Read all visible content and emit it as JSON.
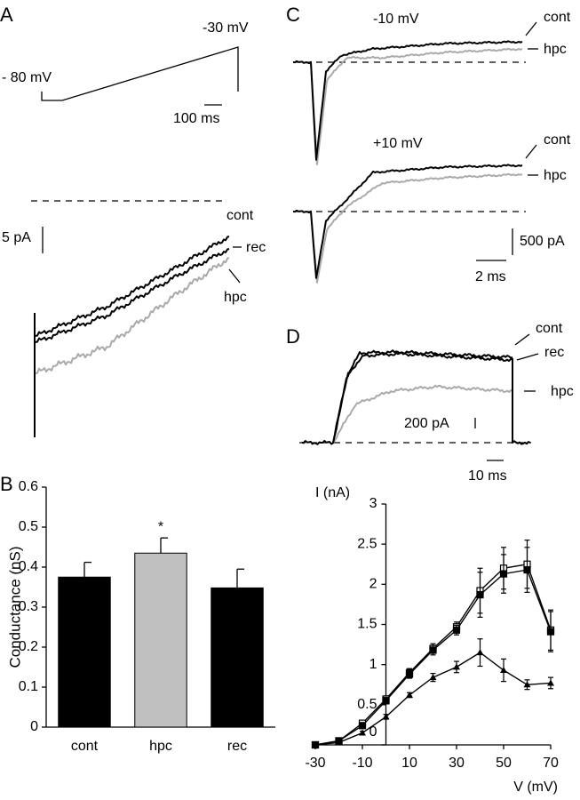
{
  "panel_labels": [
    "A",
    "B",
    "C",
    "D"
  ],
  "trace_labels": {
    "a_voltage_start": "- 80 mV",
    "a_voltage_end": "-30 mV",
    "a_time_scale": "100 ms",
    "a_current_scale": "5 pA",
    "a_cont": "cont",
    "a_rec": "rec",
    "a_hpc": "hpc",
    "c_top_voltage": "-10 mV",
    "c_top_cont": "cont",
    "c_top_hpc": "hpc",
    "c_bottom_voltage": "+10 mV",
    "c_bottom_cont": "cont",
    "c_bottom_hpc": "hpc",
    "c_current_scale": "500 pA",
    "c_time_scale": "2 ms",
    "d_cont": "cont",
    "d_rec": "rec",
    "d_hpc": "hpc",
    "d_current_scale": "200 pA",
    "d_time_scale": "10 ms"
  },
  "chart_data": [
    {
      "type": "bar",
      "ylabel": "Conductance (nS)",
      "categories": [
        "cont",
        "hpc",
        "rec"
      ],
      "values": [
        0.375,
        0.435,
        0.348
      ],
      "errors": [
        0.037,
        0.038,
        0.047
      ],
      "colors": [
        "#000000",
        "#c0c0c0",
        "#000000"
      ],
      "annotation": "*",
      "ylim": [
        0,
        0.6
      ],
      "yticks": [
        0,
        0.1,
        0.2,
        0.3,
        0.4,
        0.5,
        0.6
      ]
    },
    {
      "type": "line",
      "xlabel": "V (mV)",
      "ylabel": "I (nA)",
      "x": [
        -30,
        -20,
        -10,
        0,
        10,
        20,
        30,
        40,
        50,
        60,
        70
      ],
      "xlim": [
        -30,
        70
      ],
      "xticks": [
        -30,
        -10,
        10,
        30,
        50,
        70
      ],
      "ylim": [
        0,
        3
      ],
      "yticks": [
        0,
        0.5,
        1,
        1.5,
        2,
        2.5,
        3
      ],
      "series": [
        {
          "marker": "square-open",
          "color": "#000000",
          "values": [
            0,
            0.05,
            0.27,
            0.57,
            0.9,
            1.2,
            1.47,
            1.92,
            2.2,
            2.25,
            1.43
          ],
          "errors": [
            0.01,
            0.02,
            0.03,
            0.04,
            0.05,
            0.06,
            0.06,
            0.28,
            0.26,
            0.3,
            0.25
          ]
        },
        {
          "marker": "square",
          "color": "#000000",
          "values": [
            0,
            0.05,
            0.24,
            0.55,
            0.88,
            1.18,
            1.43,
            1.87,
            2.13,
            2.18,
            1.41
          ],
          "errors": [
            0.01,
            0.02,
            0.03,
            0.04,
            0.05,
            0.06,
            0.06,
            0.28,
            0.24,
            0.28,
            0.25
          ]
        },
        {
          "marker": "triangle",
          "color": "#000000",
          "values": [
            0,
            0.03,
            0.15,
            0.35,
            0.62,
            0.84,
            0.97,
            1.15,
            0.93,
            0.75,
            0.77
          ],
          "errors": [
            0.01,
            0.01,
            0.02,
            0.03,
            0.03,
            0.05,
            0.07,
            0.17,
            0.14,
            0.06,
            0.07
          ]
        }
      ]
    }
  ]
}
